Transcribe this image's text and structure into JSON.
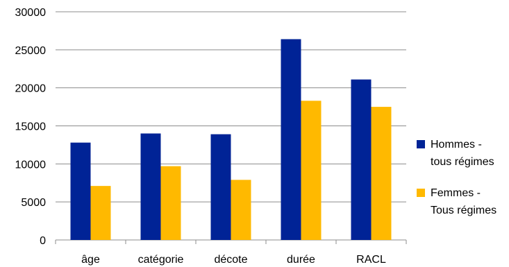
{
  "chart_data": {
    "type": "bar",
    "categories": [
      "âge",
      "catégorie",
      "décote",
      "durée",
      "RACL"
    ],
    "series": [
      {
        "name": "Hommes - tous régimes",
        "values": [
          12800,
          14000,
          13900,
          26400,
          21100
        ],
        "color": "#002396"
      },
      {
        "name": "Femmes - Tous régimes",
        "values": [
          7100,
          9700,
          7900,
          18300,
          17500
        ],
        "color": "#FFB900"
      }
    ],
    "ylim": [
      0,
      30000
    ],
    "yticks": [
      0,
      5000,
      10000,
      15000,
      20000,
      25000,
      30000
    ],
    "grid": true,
    "legend_position": "right"
  },
  "legend": [
    {
      "label_line1": "Hommes -",
      "label_line2": "tous régimes"
    },
    {
      "label_line1": "Femmes -",
      "label_line2": "Tous régimes"
    }
  ]
}
